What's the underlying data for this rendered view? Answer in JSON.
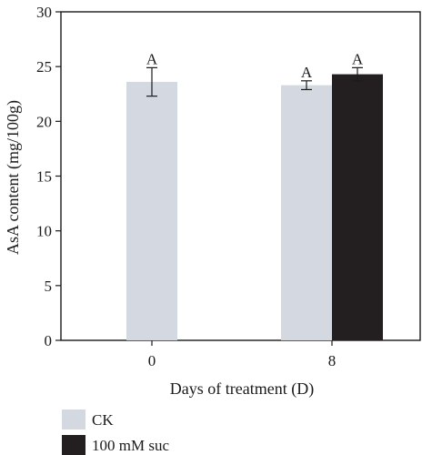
{
  "chart_data": {
    "type": "bar",
    "title": "",
    "xlabel": "Days of treatment (D)",
    "ylabel": "AsA content  (mg/100g)",
    "ylim": [
      0,
      30
    ],
    "yticks": [
      "0",
      "5",
      "10",
      "15",
      "20",
      "25",
      "30"
    ],
    "categories": [
      "0",
      "8"
    ],
    "grid": false,
    "legend_position": "bottom-left",
    "series": [
      {
        "name": "CK",
        "color": "#d3d8e1",
        "values": [
          23.6,
          23.3
        ],
        "errors": [
          1.3,
          0.4
        ],
        "labels": [
          "A",
          "A"
        ]
      },
      {
        "name": "100 mM suc",
        "color": "#231f20",
        "values": [
          null,
          24.3
        ],
        "errors": [
          null,
          0.6
        ],
        "labels": [
          "",
          "A"
        ]
      }
    ]
  }
}
